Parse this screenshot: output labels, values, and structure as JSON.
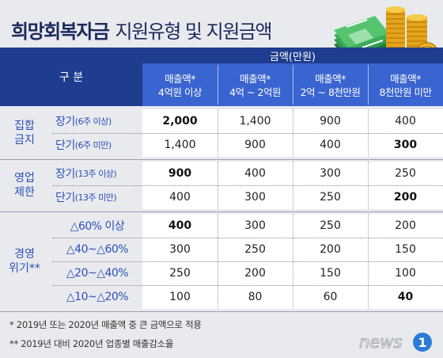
{
  "title": {
    "bold": "희망회복자금",
    "regular": "지원유형 및 지원금액"
  },
  "header": {
    "category": "구 분",
    "amount": "금액(만원)",
    "columns": [
      {
        "line1": "매출액*",
        "line2": "4억원 이상"
      },
      {
        "line1": "매출액*",
        "line2": "4억 ~ 2억원"
      },
      {
        "line1": "매출액*",
        "line2": "2억 ~ 8천만원"
      },
      {
        "line1": "매출액*",
        "line2": "8천만원 미만"
      }
    ]
  },
  "groups": [
    {
      "name_line1": "집합",
      "name_line2": "금지",
      "rows": [
        {
          "label": "장기",
          "note": "(6주 이상)",
          "values": [
            "2,000",
            "1,400",
            "900",
            "400"
          ]
        },
        {
          "label": "단기",
          "note": "(6주 미만)",
          "values": [
            "1,400",
            "900",
            "400",
            "300"
          ]
        }
      ]
    },
    {
      "name_line1": "영업",
      "name_line2": "제한",
      "rows": [
        {
          "label": "장기",
          "note": "(13주 이상)",
          "values": [
            "900",
            "400",
            "300",
            "250"
          ]
        },
        {
          "label": "단기",
          "note": "(13주 미만)",
          "values": [
            "400",
            "300",
            "250",
            "200"
          ]
        }
      ]
    },
    {
      "name_line1": "경영",
      "name_line2": "위기**",
      "rows": [
        {
          "label": "△60% 이상",
          "values": [
            "400",
            "300",
            "250",
            "200"
          ]
        },
        {
          "label": "△40~△60%",
          "values": [
            "300",
            "250",
            "200",
            "150"
          ]
        },
        {
          "label": "△20~△40%",
          "values": [
            "250",
            "200",
            "150",
            "100"
          ]
        },
        {
          "label": "△10~△20%",
          "values": [
            "100",
            "80",
            "60",
            "40"
          ]
        }
      ]
    }
  ],
  "footnotes": [
    "* 2019년 또는 2020년 매출액 중 큰 금액으로 적용",
    "** 2019년 대비 2020년 업종별 매출감소율"
  ],
  "logo": {
    "text": "news",
    "mark": "1"
  },
  "colors": {
    "header": "#1f3d8f",
    "header_sub": "#3a64cf",
    "accent_text": "#2a4fb8",
    "title": "#1b2a5c"
  }
}
